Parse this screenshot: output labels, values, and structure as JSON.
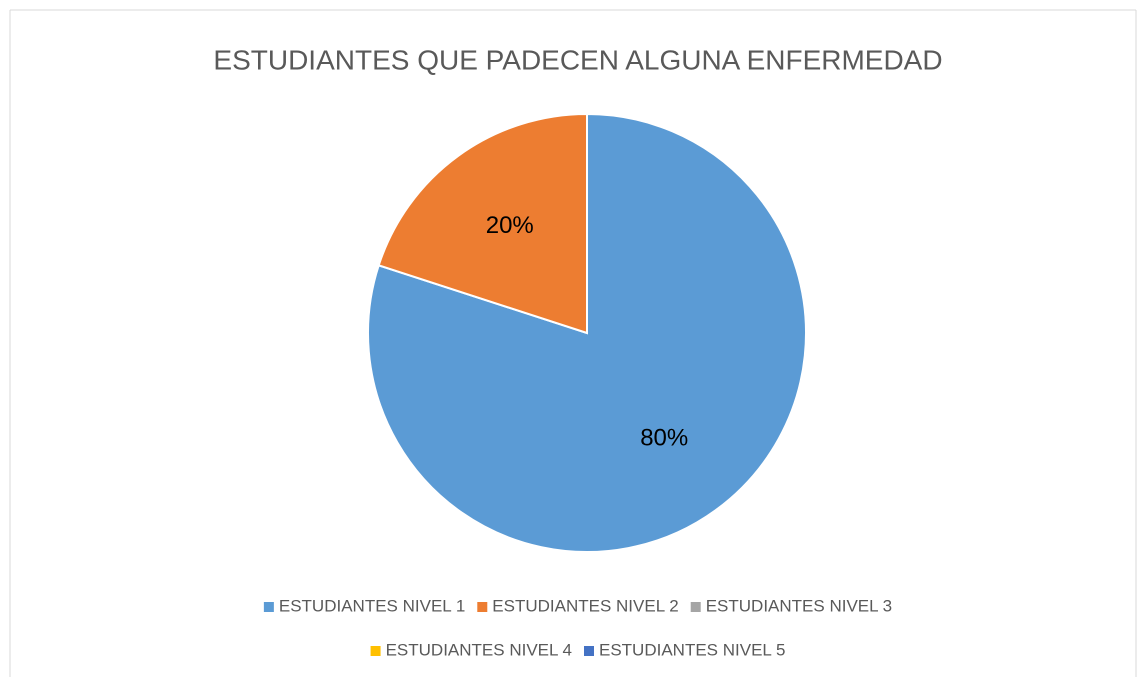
{
  "chart_data": {
    "type": "pie",
    "title": "ESTUDIANTES QUE PADECEN ALGUNA ENFERMEDAD",
    "categories": [
      "ESTUDIANTES NIVEL 1",
      "ESTUDIANTES NIVEL 2",
      "ESTUDIANTES NIVEL 3",
      "ESTUDIANTES NIVEL 4",
      "ESTUDIANTES NIVEL 5"
    ],
    "values": [
      80,
      20,
      0,
      0,
      0
    ],
    "value_labels": [
      "80%",
      "20%",
      null,
      null,
      null
    ],
    "colors": [
      "#5b9bd5",
      "#ed7d31",
      "#a5a5a5",
      "#ffc000",
      "#4472c4"
    ],
    "legend": "bottom"
  }
}
